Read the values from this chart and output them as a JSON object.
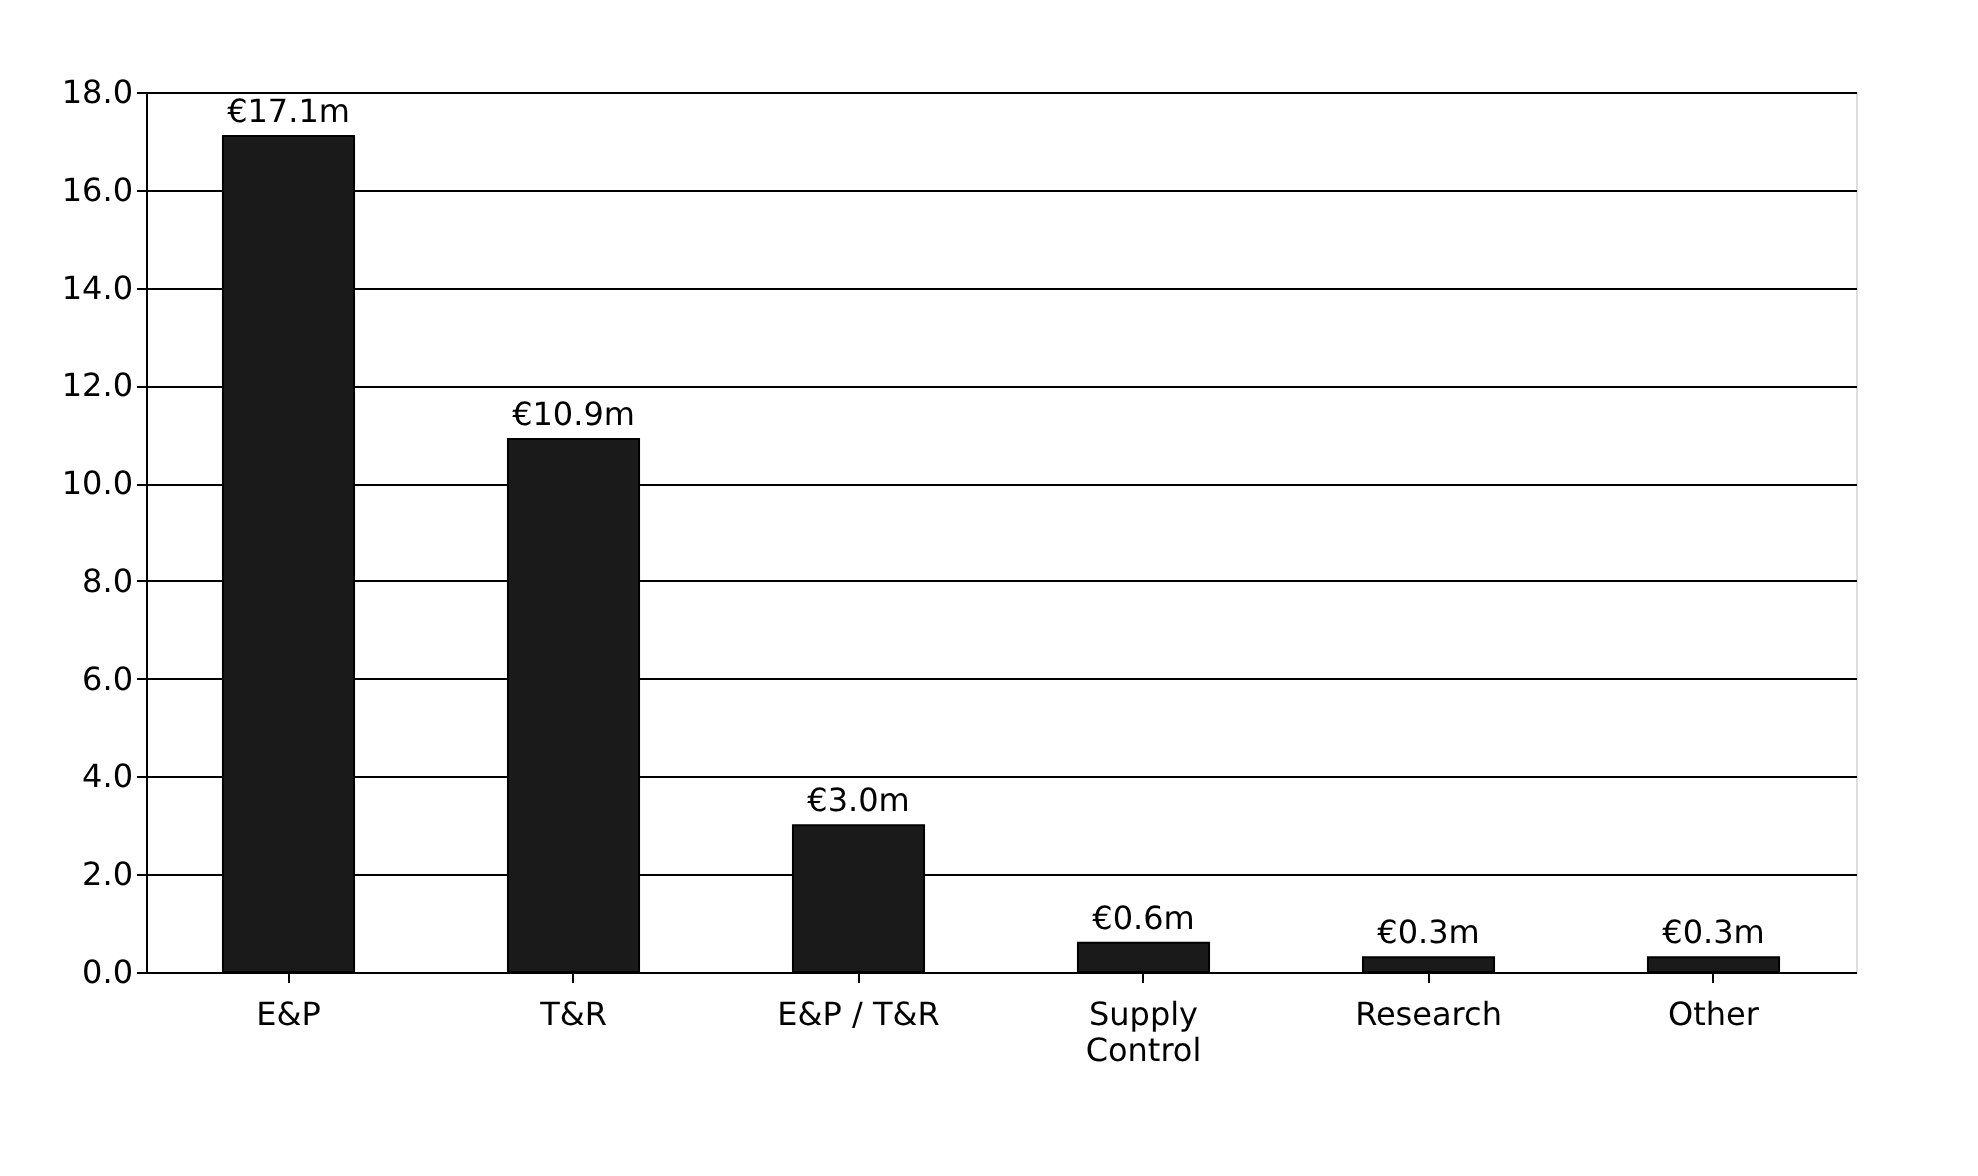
{
  "chart_data": {
    "type": "bar",
    "categories": [
      "E&P",
      "T&R",
      "E&P / T&R",
      "Supply Control",
      "Research",
      "Other"
    ],
    "values": [
      17.1,
      10.9,
      3.0,
      0.6,
      0.3,
      0.3
    ],
    "value_labels": [
      "€17.1m",
      "€10.9m",
      "€3.0m",
      "€0.6m",
      "€0.3m",
      "€0.3m"
    ],
    "color": "#1a1a1a",
    "ylim": [
      0,
      18
    ],
    "yticks": [
      {
        "value": 0,
        "label": "0.0"
      },
      {
        "value": 2,
        "label": "2.0"
      },
      {
        "value": 4,
        "label": "4.0"
      },
      {
        "value": 6,
        "label": "6.0"
      },
      {
        "value": 8,
        "label": "8.0"
      },
      {
        "value": 10,
        "label": "10.0"
      },
      {
        "value": 12,
        "label": "12.0"
      },
      {
        "value": 14,
        "label": "14.0"
      },
      {
        "value": 16,
        "label": "16.0"
      },
      {
        "value": 18,
        "label": "18.0"
      }
    ],
    "grid": "y"
  }
}
